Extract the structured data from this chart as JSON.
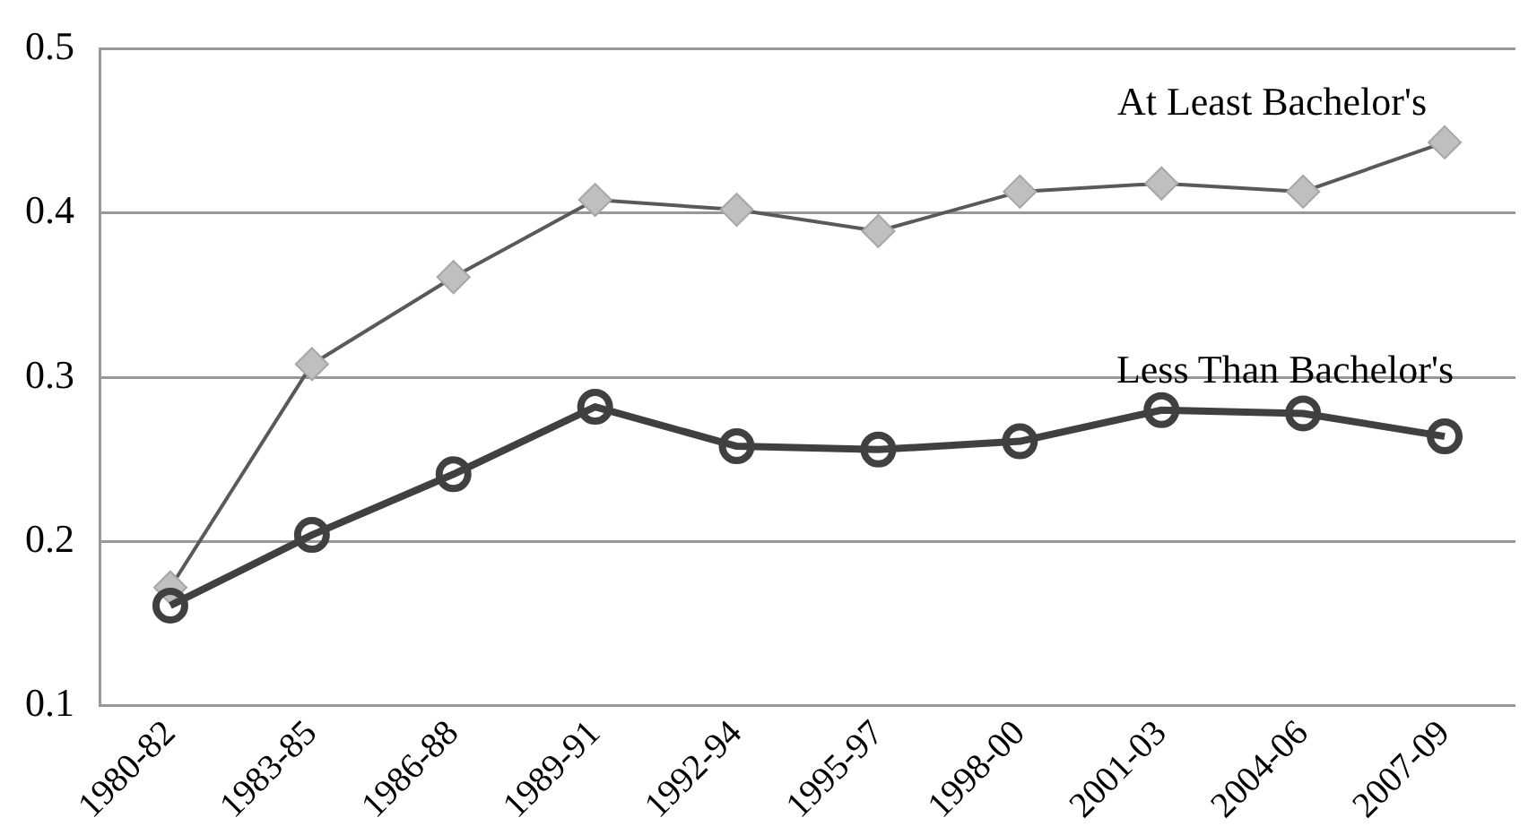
{
  "chart_data": {
    "type": "line",
    "categories": [
      "1980-82",
      "1983-85",
      "1986-88",
      "1989-91",
      "1992-94",
      "1995-97",
      "1998-00",
      "2001-03",
      "2004-06",
      "2007-09"
    ],
    "series": [
      {
        "name": "At Least Bachelor's",
        "color": "#595959",
        "marker": "diamond",
        "values": [
          0.172,
          0.308,
          0.361,
          0.408,
          0.402,
          0.389,
          0.413,
          0.418,
          0.413,
          0.443
        ]
      },
      {
        "name": "Less Than Bachelor's",
        "color": "#404040",
        "marker": "circle",
        "values": [
          0.161,
          0.204,
          0.241,
          0.282,
          0.258,
          0.256,
          0.261,
          0.28,
          0.278,
          0.264
        ]
      }
    ],
    "ylim": [
      0.1,
      0.5
    ],
    "yticks": [
      0.1,
      0.2,
      0.3,
      0.4,
      0.5
    ],
    "grid": "y",
    "legend": false
  }
}
